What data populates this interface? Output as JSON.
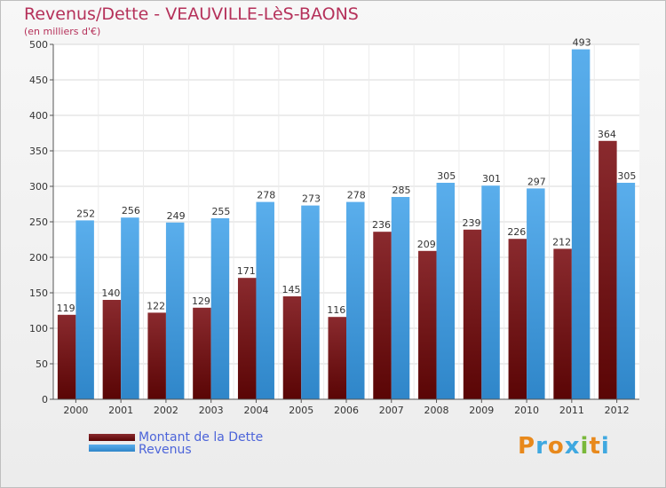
{
  "title": "Revenus/Dette - VEAUVILLE-LèS-BAONS",
  "subtitle": "(en milliers d'€)",
  "brand": "Proxiti",
  "colors": {
    "dette_top": "#8a2a2e",
    "dette_bottom": "#5a0505",
    "revenus_top": "#5aaeec",
    "revenus_bottom": "#2f86c9",
    "title": "#b5315a"
  },
  "chart_data": {
    "type": "bar",
    "title": "Revenus/Dette - VEAUVILLE-LèS-BAONS",
    "subtitle": "(en milliers d'€)",
    "categories": [
      "2000",
      "2001",
      "2002",
      "2003",
      "2004",
      "2005",
      "2006",
      "2007",
      "2008",
      "2009",
      "2010",
      "2011",
      "2012"
    ],
    "series": [
      {
        "name": "Montant de la Dette",
        "values": [
          119,
          140,
          122,
          129,
          171,
          145,
          116,
          236,
          209,
          239,
          226,
          212,
          364
        ]
      },
      {
        "name": "Revenus",
        "values": [
          252,
          256,
          249,
          255,
          278,
          273,
          278,
          285,
          305,
          301,
          297,
          493,
          305
        ]
      }
    ],
    "yticks": [
      0,
      50,
      100,
      150,
      200,
      250,
      300,
      350,
      400,
      450,
      500
    ],
    "ylim": [
      0,
      500
    ],
    "grid": true,
    "legend": "bottom-left"
  }
}
